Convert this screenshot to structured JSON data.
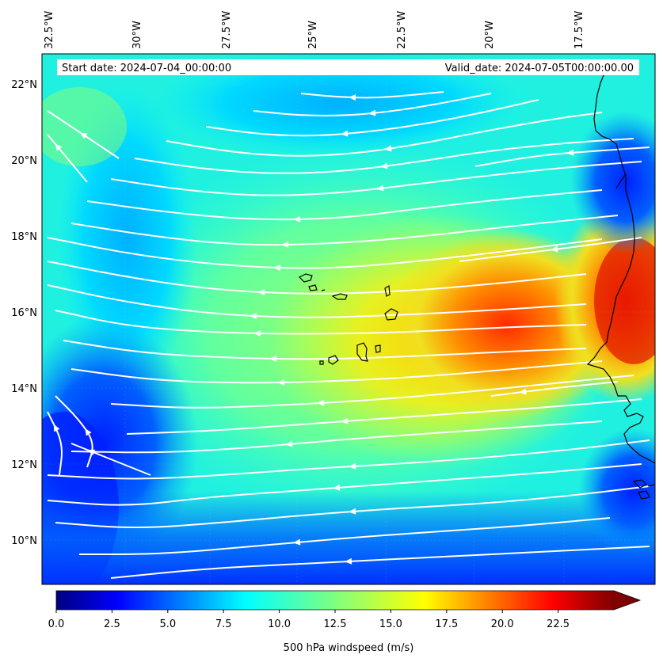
{
  "map": {
    "start_label": "Start date: 2024-07-04_00:00:00",
    "valid_label": "Valid_date: 2024-07-05T00:00:00.00",
    "lon_labels": [
      "32.5°W",
      "30°W",
      "27.5°W",
      "25°W",
      "22.5°W",
      "20°W",
      "17.5°W"
    ],
    "lat_labels": [
      "22°N",
      "20°N",
      "18°N",
      "16°N",
      "14°N",
      "12°N",
      "10°N"
    ],
    "streamline_color": "#ffffff",
    "coastline_color": "#000000"
  },
  "colorbar": {
    "title": "500 hPa windspeed (m/s)",
    "ticks": [
      "0.0",
      "2.5",
      "5.0",
      "7.5",
      "10.0",
      "12.5",
      "15.0",
      "17.5",
      "20.0",
      "22.5"
    ],
    "min": 0,
    "max": 25,
    "extend": "max",
    "colormap": "jet"
  }
}
